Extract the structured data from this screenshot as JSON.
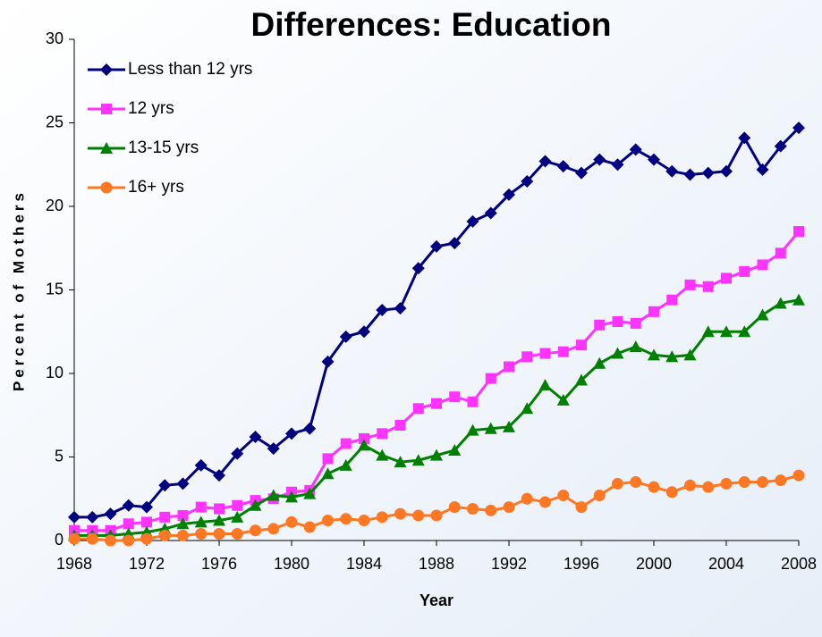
{
  "chart_data": {
    "type": "line",
    "title": "Differences: Education",
    "x_label": "Year",
    "y_label": "Percent of Mothers",
    "x": [
      1968,
      1969,
      1970,
      1971,
      1972,
      1973,
      1974,
      1975,
      1976,
      1977,
      1978,
      1979,
      1980,
      1981,
      1982,
      1983,
      1984,
      1985,
      1986,
      1987,
      1988,
      1989,
      1990,
      1991,
      1992,
      1993,
      1994,
      1995,
      1996,
      1997,
      1998,
      1999,
      2000,
      2001,
      2002,
      2003,
      2004,
      2005,
      2006,
      2007,
      2008
    ],
    "series": [
      {
        "name": "Less than 12 yrs",
        "color": "#000080",
        "marker": "diamond",
        "values": [
          1.4,
          1.4,
          1.6,
          2.1,
          2.0,
          3.3,
          3.4,
          4.5,
          3.9,
          5.2,
          6.2,
          5.5,
          6.4,
          6.7,
          10.7,
          12.2,
          12.5,
          13.8,
          13.9,
          16.3,
          17.6,
          17.8,
          19.1,
          19.6,
          20.7,
          21.5,
          22.7,
          22.4,
          22.0,
          22.8,
          22.5,
          23.4,
          22.8,
          22.1,
          21.9,
          22.0,
          22.1,
          24.1,
          22.2,
          23.6,
          24.7
        ]
      },
      {
        "name": "12 yrs",
        "color": "#ff33ff",
        "marker": "square",
        "values": [
          0.6,
          0.6,
          0.6,
          1.0,
          1.1,
          1.4,
          1.5,
          2.0,
          1.9,
          2.1,
          2.4,
          2.5,
          2.9,
          3.0,
          4.9,
          5.8,
          6.1,
          6.4,
          6.9,
          7.9,
          8.2,
          8.6,
          8.3,
          9.7,
          10.4,
          11.0,
          11.2,
          11.3,
          11.7,
          12.9,
          13.1,
          13.0,
          13.7,
          14.4,
          15.3,
          15.2,
          15.7,
          16.1,
          16.5,
          17.2,
          18.5
        ]
      },
      {
        "name": "13-15 yrs",
        "color": "#008000",
        "marker": "triangle",
        "values": [
          0.3,
          0.3,
          0.3,
          0.4,
          0.5,
          0.7,
          1.0,
          1.1,
          1.2,
          1.4,
          2.1,
          2.7,
          2.6,
          2.8,
          4.0,
          4.5,
          5.7,
          5.1,
          4.7,
          4.8,
          5.1,
          5.4,
          6.6,
          6.7,
          6.8,
          7.9,
          9.3,
          8.4,
          9.6,
          10.6,
          11.2,
          11.6,
          11.1,
          11.0,
          11.1,
          12.5,
          12.5,
          12.5,
          13.5,
          14.2,
          14.4
        ]
      },
      {
        "name": "16+ yrs",
        "color": "#ff7722",
        "marker": "circle",
        "values": [
          0.1,
          0.1,
          0.0,
          0.0,
          0.1,
          0.3,
          0.3,
          0.4,
          0.4,
          0.4,
          0.6,
          0.7,
          1.1,
          0.8,
          1.2,
          1.3,
          1.2,
          1.4,
          1.6,
          1.5,
          1.5,
          2.0,
          1.9,
          1.8,
          2.0,
          2.5,
          2.3,
          2.7,
          2.0,
          2.7,
          3.4,
          3.5,
          3.2,
          2.9,
          3.3,
          3.2,
          3.4,
          3.5,
          3.5,
          3.6,
          3.9
        ]
      }
    ],
    "xlim": [
      1968,
      2008
    ],
    "xticks": [
      1968,
      1972,
      1976,
      1980,
      1984,
      1988,
      1992,
      1996,
      2000,
      2004,
      2008
    ],
    "ylim": [
      0,
      30
    ],
    "yticks": [
      0,
      5,
      10,
      15,
      20,
      25,
      30
    ],
    "legend": "top-left"
  }
}
